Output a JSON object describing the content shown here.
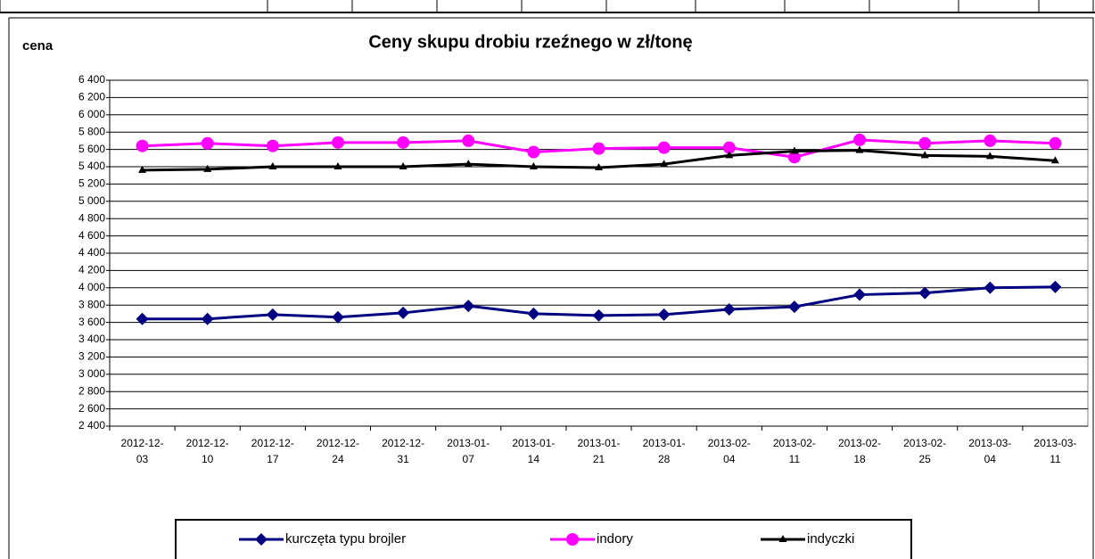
{
  "chart_data": {
    "type": "line",
    "title": "Ceny skupu drobiu rzeźnego w zł/tonę",
    "y_label": "cena",
    "categories": [
      "2012-12-\n03",
      "2012-12-\n10",
      "2012-12-\n17",
      "2012-12-\n24",
      "2012-12-\n31",
      "2013-01-\n07",
      "2013-01-\n14",
      "2013-01-\n21",
      "2013-01-\n28",
      "2013-02-\n04",
      "2013-02-\n11",
      "2013-02-\n18",
      "2013-02-\n25",
      "2013-03-\n04",
      "2013-03-\n11"
    ],
    "series": [
      {
        "name": "kurczęta typu brojler",
        "color": "#000080",
        "marker": "diamond",
        "values": [
          3640,
          3640,
          3690,
          3660,
          3710,
          3790,
          3700,
          3680,
          3690,
          3750,
          3780,
          3920,
          3940,
          4000,
          4010
        ]
      },
      {
        "name": "indory",
        "color": "#ff00ff",
        "marker": "circle",
        "values": [
          5640,
          5670,
          5640,
          5680,
          5680,
          5700,
          5570,
          5610,
          5620,
          5620,
          5510,
          5710,
          5670,
          5700,
          5670
        ]
      },
      {
        "name": "indyczki",
        "color": "#000000",
        "marker": "triangle",
        "values": [
          5360,
          5370,
          5400,
          5400,
          5400,
          5430,
          5400,
          5390,
          5430,
          5530,
          5580,
          5590,
          5530,
          5520,
          5470
        ]
      }
    ],
    "ylim": [
      2400,
      6400
    ],
    "yticks": [
      {
        "value": 2400,
        "label": "2 400"
      },
      {
        "value": 2600,
        "label": "2 600"
      },
      {
        "value": 2800,
        "label": "2 800"
      },
      {
        "value": 3000,
        "label": "3 000"
      },
      {
        "value": 3200,
        "label": "3 200"
      },
      {
        "value": 3400,
        "label": "3 400"
      },
      {
        "value": 3600,
        "label": "3 600"
      },
      {
        "value": 3800,
        "label": "3 800"
      },
      {
        "value": 4000,
        "label": "4 000"
      },
      {
        "value": 4200,
        "label": "4 200"
      },
      {
        "value": 4400,
        "label": "4 400"
      },
      {
        "value": 4600,
        "label": "4 600"
      },
      {
        "value": 4800,
        "label": "4 800"
      },
      {
        "value": 5000,
        "label": "5 000"
      },
      {
        "value": 5200,
        "label": "5 200"
      },
      {
        "value": 5400,
        "label": "5 400"
      },
      {
        "value": 5600,
        "label": "5 600"
      },
      {
        "value": 5800,
        "label": "5 800"
      },
      {
        "value": 6000,
        "label": "6 000"
      },
      {
        "value": 6200,
        "label": "6 200"
      },
      {
        "value": 6400,
        "label": "6 400"
      }
    ],
    "grid": true,
    "legend": "bottom"
  }
}
